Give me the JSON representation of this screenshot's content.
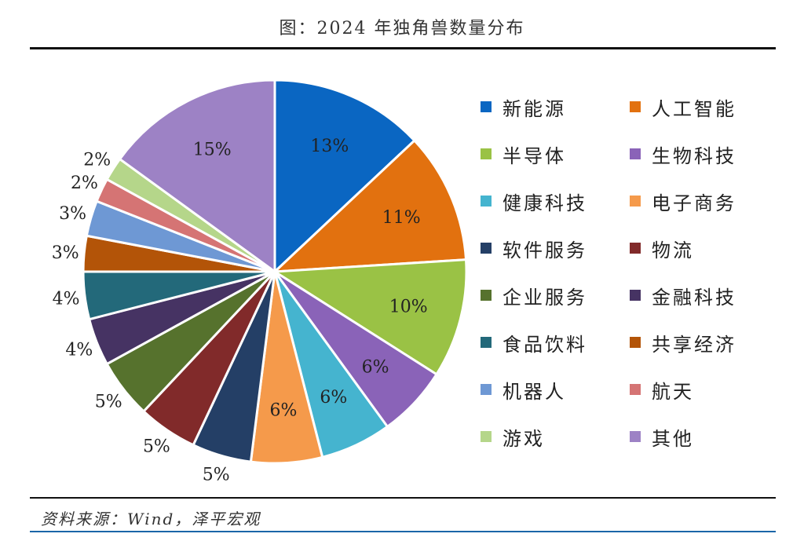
{
  "title": "图：2024 年独角兽数量分布",
  "source": "资料来源：Wind，泽平宏观",
  "chart_data": {
    "type": "pie",
    "title": "图：2024 年独角兽数量分布",
    "start_angle_deg": 0,
    "direction": "clockwise",
    "legend_position": "right",
    "slices": [
      {
        "label": "新能源",
        "value": 13,
        "display": "13%",
        "color": "#0a66c2"
      },
      {
        "label": "人工智能",
        "value": 11,
        "display": "11%",
        "color": "#e2710f"
      },
      {
        "label": "半导体",
        "value": 10,
        "display": "10%",
        "color": "#9ac245"
      },
      {
        "label": "生物科技",
        "value": 6,
        "display": "6%",
        "color": "#8a63b8"
      },
      {
        "label": "健康科技",
        "value": 6,
        "display": "6%",
        "color": "#45b4cf"
      },
      {
        "label": "电子商务",
        "value": 6,
        "display": "6%",
        "color": "#f59a4b"
      },
      {
        "label": "软件服务",
        "value": 5,
        "display": "5%",
        "color": "#243f66"
      },
      {
        "label": "物流",
        "value": 5,
        "display": "5%",
        "color": "#812a2a"
      },
      {
        "label": "企业服务",
        "value": 5,
        "display": "5%",
        "color": "#56722d"
      },
      {
        "label": "金融科技",
        "value": 4,
        "display": "4%",
        "color": "#463363"
      },
      {
        "label": "食品饮料",
        "value": 4,
        "display": "4%",
        "color": "#23697a"
      },
      {
        "label": "共享经济",
        "value": 3,
        "display": "3%",
        "color": "#b35408"
      },
      {
        "label": "机器人",
        "value": 3,
        "display": "3%",
        "color": "#6e98d4"
      },
      {
        "label": "航天",
        "value": 2,
        "display": "2%",
        "color": "#d57474"
      },
      {
        "label": "游戏",
        "value": 2,
        "display": "2%",
        "color": "#b5d68a"
      },
      {
        "label": "其他",
        "value": 15,
        "display": "15%",
        "color": "#9d82c5"
      }
    ]
  }
}
